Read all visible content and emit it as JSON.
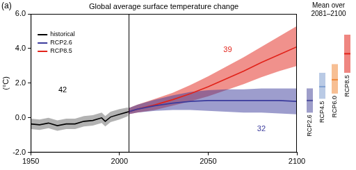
{
  "chart_data": {
    "type": "line",
    "panel_label": "(a)",
    "title": "Global average surface temperature change",
    "y_label": "(°C)",
    "xlim": [
      1950,
      2100
    ],
    "xticks": [
      1950,
      2000,
      2050,
      2100
    ],
    "ylim": [
      -2,
      6
    ],
    "yticks": [
      {
        "value": -2,
        "label": "-2.0"
      },
      {
        "value": 0,
        "label": "0.0"
      },
      {
        "value": 2,
        "label": "2.0"
      },
      {
        "value": 4,
        "label": "4.0"
      },
      {
        "value": 6,
        "label": "6.0"
      }
    ],
    "grid": false,
    "legend": "upper left",
    "divider_x": 2005,
    "series": [
      {
        "name": "historical",
        "color": "#000000",
        "x": [
          1950,
          1955,
          1960,
          1965,
          1970,
          1975,
          1980,
          1985,
          1990,
          1992,
          1995,
          2000,
          2005
        ],
        "values": [
          -0.35,
          -0.4,
          -0.3,
          -0.45,
          -0.35,
          -0.35,
          -0.2,
          -0.15,
          0.0,
          -0.2,
          0.05,
          0.2,
          0.35
        ],
        "lower": [
          -0.65,
          -0.7,
          -0.6,
          -0.75,
          -0.65,
          -0.65,
          -0.5,
          -0.45,
          -0.3,
          -0.5,
          -0.25,
          -0.1,
          0.1
        ],
        "upper": [
          -0.05,
          -0.1,
          0.0,
          -0.15,
          -0.05,
          -0.05,
          0.1,
          0.15,
          0.3,
          0.1,
          0.35,
          0.5,
          0.6
        ]
      },
      {
        "name": "RCP2.6",
        "color": "#3b3b9c",
        "x": [
          2005,
          2010,
          2020,
          2030,
          2040,
          2050,
          2060,
          2070,
          2080,
          2090,
          2100
        ],
        "values": [
          0.35,
          0.5,
          0.7,
          0.85,
          0.95,
          1.0,
          1.0,
          1.0,
          1.0,
          1.0,
          0.95
        ],
        "lower": [
          0.2,
          0.3,
          0.4,
          0.45,
          0.45,
          0.4,
          0.35,
          0.3,
          0.3,
          0.25,
          0.2
        ],
        "upper": [
          0.55,
          0.75,
          1.05,
          1.3,
          1.5,
          1.6,
          1.65,
          1.65,
          1.7,
          1.7,
          1.7
        ]
      },
      {
        "name": "RCP8.5",
        "color": "#e2231a",
        "x": [
          2005,
          2010,
          2020,
          2030,
          2040,
          2050,
          2060,
          2070,
          2080,
          2090,
          2100
        ],
        "values": [
          0.35,
          0.5,
          0.75,
          1.05,
          1.4,
          1.8,
          2.25,
          2.7,
          3.2,
          3.65,
          4.1
        ],
        "lower": [
          0.2,
          0.3,
          0.45,
          0.7,
          0.95,
          1.25,
          1.6,
          1.95,
          2.35,
          2.7,
          3.0
        ],
        "upper": [
          0.55,
          0.75,
          1.1,
          1.45,
          1.9,
          2.4,
          2.95,
          3.5,
          4.1,
          4.7,
          5.3
        ]
      }
    ],
    "annotations": [
      {
        "text": "42",
        "x": 1968,
        "y": 1.6,
        "color": "#000000"
      },
      {
        "text": "39",
        "x": 2061,
        "y": 3.9,
        "color": "#e2231a"
      },
      {
        "text": "32",
        "x": 2080,
        "y": -0.65,
        "color": "#3b3b9c"
      }
    ],
    "side_panel": {
      "title": [
        "Mean over",
        "2081–2100"
      ],
      "bars": [
        {
          "name": "RCP2.6",
          "color": "#4f4f9e",
          "low": 0.3,
          "high": 1.7,
          "mean": 1.0
        },
        {
          "name": "RCP4.5",
          "color": "#7f9fd0",
          "low": 1.1,
          "high": 2.6,
          "mean": 1.8
        },
        {
          "name": "RCP6.0",
          "color": "#f08a3c",
          "low": 1.4,
          "high": 3.1,
          "mean": 2.2
        },
        {
          "name": "RCP8.5",
          "color": "#e2231a",
          "low": 2.6,
          "high": 4.8,
          "mean": 3.7
        }
      ]
    }
  }
}
